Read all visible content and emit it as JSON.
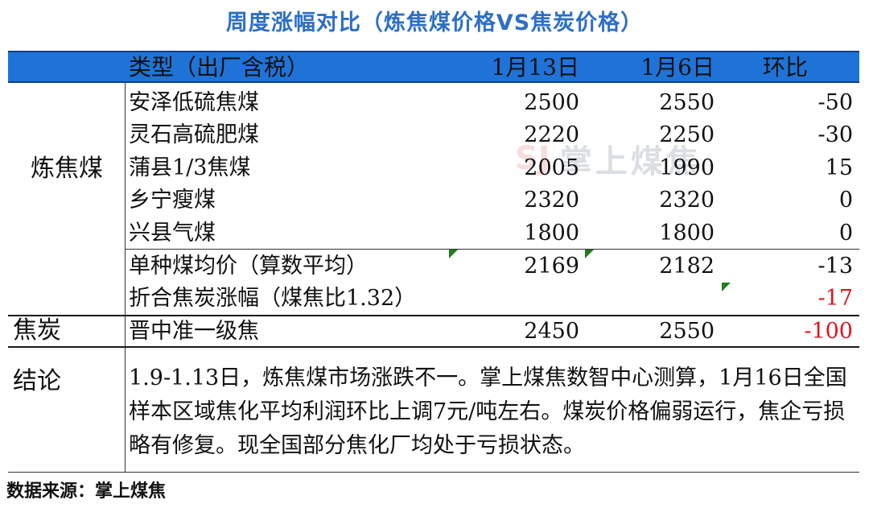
{
  "title": "周度涨幅对比（炼焦煤价格VS焦炭价格）",
  "header": {
    "type": "类型（出厂含税）",
    "date1": "1月13日",
    "date2": "1月6日",
    "change": "环比"
  },
  "sections": {
    "coking_coal_label": "炼焦煤",
    "coke_label": "焦炭",
    "conclusion_label": "结论"
  },
  "rows": [
    {
      "name": "安泽低硫焦煤",
      "v1": "2500",
      "v2": "2550",
      "chg": "-50"
    },
    {
      "name": "灵石高硫肥煤",
      "v1": "2220",
      "v2": "2250",
      "chg": "-30"
    },
    {
      "name": "蒲县1/3焦煤",
      "v1": "2005",
      "v2": "1990",
      "chg": "15"
    },
    {
      "name": "乡宁瘦煤",
      "v1": "2320",
      "v2": "2320",
      "chg": "0"
    },
    {
      "name": "兴县气煤",
      "v1": "1800",
      "v2": "1800",
      "chg": "0"
    },
    {
      "name": "单种煤均价（算数平均）",
      "v1": "2169",
      "v2": "2182",
      "chg": "-13"
    },
    {
      "name": "折合焦炭涨幅（煤焦比1.32）",
      "v1": "",
      "v2": "",
      "chg": "-17"
    },
    {
      "name": "晋中准一级焦",
      "v1": "2450",
      "v2": "2550",
      "chg": "-100"
    }
  ],
  "conclusion": "1.9-1.13日，炼焦煤市场涨跌不一。掌上煤焦数智中心测算，1月16日全国样本区域焦化平均利润环比上调7元/吨左右。煤炭价格偏弱运行，焦企亏损略有修复。现全国部分焦化厂均处于亏损状态。",
  "source": "数据来源：掌上煤焦",
  "watermark": {
    "logo": "SJ",
    "text": "掌上煤焦"
  },
  "colors": {
    "header_bg": "#1f73d7",
    "title": "#2e6fc4",
    "negative_highlight": "#e0141e"
  }
}
